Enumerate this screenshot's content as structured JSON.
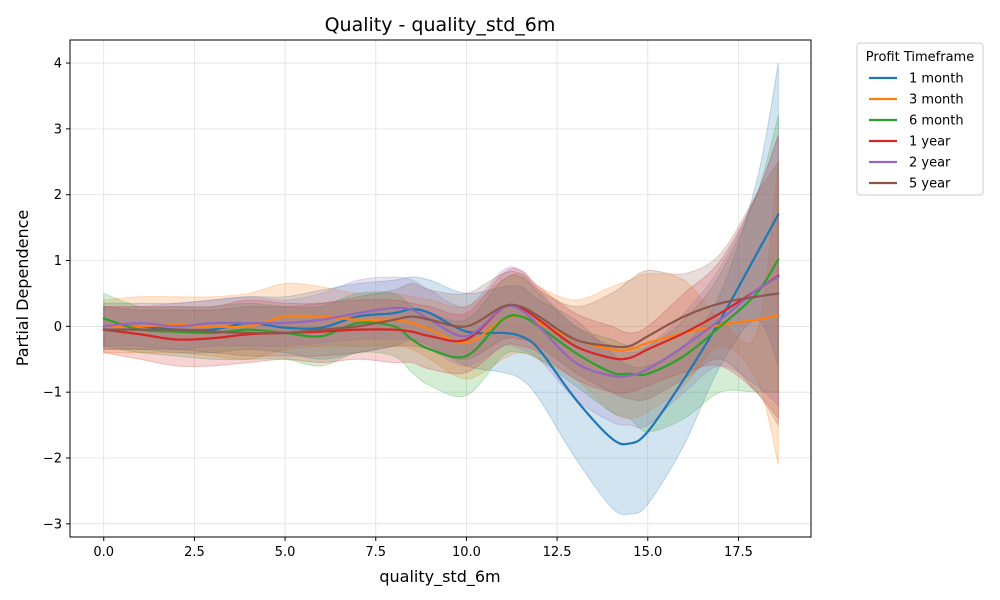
{
  "chart_data": {
    "type": "line",
    "title": "Quality - quality_std_6m",
    "xlabel": "quality_std_6m",
    "ylabel": "Partial Dependence",
    "xlim": [
      -0.93,
      19.5
    ],
    "ylim": [
      -3.2,
      4.35
    ],
    "xticks": [
      0.0,
      2.5,
      5.0,
      7.5,
      10.0,
      12.5,
      15.0,
      17.5
    ],
    "xtick_labels": [
      "0.0",
      "2.5",
      "5.0",
      "7.5",
      "10.0",
      "12.5",
      "15.0",
      "17.5"
    ],
    "yticks": [
      -3,
      -2,
      -1,
      0,
      1,
      2,
      3,
      4
    ],
    "ytick_labels": [
      "−3",
      "−2",
      "−1",
      "0",
      "1",
      "2",
      "3",
      "4"
    ],
    "grid": true,
    "legend": {
      "title": "Profit Timeframe",
      "placement": "outside-top-right"
    },
    "x": [
      0,
      1,
      2,
      3,
      4,
      5,
      6,
      7,
      8,
      8.5,
      9,
      10,
      11,
      11.5,
      12,
      13,
      14,
      14.5,
      15,
      16,
      17,
      18,
      18.6
    ],
    "series": [
      {
        "name": "1 month",
        "color": "#1f77b4",
        "values": [
          0.0,
          0.0,
          -0.05,
          -0.05,
          0.05,
          -0.02,
          -0.02,
          0.15,
          0.2,
          0.26,
          0.2,
          -0.08,
          -0.1,
          -0.15,
          -0.35,
          -1.1,
          -1.7,
          -1.78,
          -1.6,
          -0.8,
          0.1,
          1.1,
          1.7
        ],
        "upper": [
          0.35,
          0.35,
          0.35,
          0.4,
          0.45,
          0.45,
          0.55,
          0.65,
          0.7,
          0.75,
          0.7,
          0.5,
          0.6,
          0.6,
          0.4,
          0.1,
          -0.4,
          -0.6,
          -0.6,
          -0.3,
          0.5,
          2.2,
          4.0
        ],
        "lower": [
          -0.35,
          -0.35,
          -0.4,
          -0.4,
          -0.35,
          -0.4,
          -0.5,
          -0.4,
          -0.3,
          -0.2,
          -0.3,
          -0.6,
          -0.7,
          -0.8,
          -1.1,
          -2.0,
          -2.75,
          -2.85,
          -2.7,
          -1.8,
          -0.6,
          0.1,
          -0.6
        ]
      },
      {
        "name": "3 month",
        "color": "#ff7f0e",
        "values": [
          0.0,
          0.0,
          0.02,
          0.0,
          0.0,
          0.15,
          0.15,
          0.1,
          0.1,
          0.05,
          -0.05,
          -0.25,
          0.1,
          0.15,
          0.05,
          -0.2,
          -0.35,
          -0.35,
          -0.25,
          -0.1,
          0.02,
          0.1,
          0.17
        ],
        "upper": [
          0.4,
          0.45,
          0.45,
          0.45,
          0.5,
          0.65,
          0.6,
          0.5,
          0.5,
          0.45,
          0.4,
          0.3,
          0.7,
          0.8,
          0.6,
          0.4,
          0.6,
          0.7,
          0.8,
          0.7,
          0.1,
          -0.1,
          2.5
        ],
        "lower": [
          -0.4,
          -0.4,
          -0.4,
          -0.45,
          -0.5,
          -0.35,
          -0.3,
          -0.3,
          -0.3,
          -0.35,
          -0.5,
          -0.8,
          -0.5,
          -0.4,
          -0.5,
          -0.8,
          -1.3,
          -1.4,
          -1.3,
          -0.9,
          -0.3,
          -0.8,
          -2.1
        ]
      },
      {
        "name": "6 month",
        "color": "#2ca02c",
        "values": [
          0.12,
          -0.05,
          -0.08,
          -0.1,
          -0.05,
          -0.1,
          -0.15,
          0.05,
          0.0,
          -0.2,
          -0.35,
          -0.45,
          0.1,
          0.15,
          0.0,
          -0.4,
          -0.7,
          -0.72,
          -0.72,
          -0.45,
          0.0,
          0.5,
          1.02
        ],
        "upper": [
          0.5,
          0.3,
          0.3,
          0.3,
          0.35,
          0.3,
          0.3,
          0.5,
          0.5,
          0.3,
          0.2,
          0.1,
          0.7,
          0.75,
          0.5,
          0.0,
          -0.2,
          -0.3,
          -0.3,
          0.1,
          0.8,
          2.0,
          3.2
        ],
        "lower": [
          -0.3,
          -0.4,
          -0.45,
          -0.5,
          -0.5,
          -0.5,
          -0.6,
          -0.4,
          -0.45,
          -0.7,
          -0.9,
          -1.05,
          -0.45,
          -0.4,
          -0.5,
          -0.9,
          -1.3,
          -1.4,
          -1.6,
          -1.4,
          -1.0,
          -1.0,
          -1.0
        ]
      },
      {
        "name": "1 year",
        "color": "#d62728",
        "values": [
          -0.05,
          -0.12,
          -0.2,
          -0.18,
          -0.12,
          -0.1,
          -0.08,
          -0.05,
          -0.05,
          -0.08,
          -0.15,
          -0.2,
          0.28,
          0.28,
          0.1,
          -0.3,
          -0.48,
          -0.48,
          -0.35,
          -0.1,
          0.2,
          0.55,
          0.77
        ],
        "upper": [
          0.3,
          0.3,
          0.3,
          0.3,
          0.4,
          0.35,
          0.35,
          0.4,
          0.4,
          0.35,
          0.3,
          0.2,
          0.8,
          0.85,
          0.6,
          0.2,
          0.0,
          -0.1,
          0.0,
          0.5,
          1.0,
          2.0,
          2.9
        ],
        "lower": [
          -0.4,
          -0.5,
          -0.6,
          -0.6,
          -0.55,
          -0.5,
          -0.55,
          -0.5,
          -0.55,
          -0.55,
          -0.65,
          -0.7,
          -0.3,
          -0.3,
          -0.4,
          -0.8,
          -1.0,
          -1.0,
          -0.9,
          -0.7,
          -0.6,
          -1.0,
          -1.4
        ]
      },
      {
        "name": "2 year",
        "color": "#9467bd",
        "values": [
          0.0,
          0.05,
          0.0,
          0.05,
          0.05,
          0.05,
          0.1,
          0.2,
          0.28,
          0.25,
          0.1,
          -0.15,
          0.28,
          0.25,
          0.0,
          -0.55,
          -0.75,
          -0.75,
          -0.65,
          -0.3,
          0.1,
          0.55,
          0.75
        ],
        "upper": [
          0.3,
          0.3,
          0.35,
          0.4,
          0.45,
          0.4,
          0.5,
          0.7,
          0.75,
          0.7,
          0.55,
          0.3,
          0.85,
          0.85,
          0.55,
          0.0,
          -0.3,
          -0.4,
          -0.3,
          0.2,
          0.9,
          2.0,
          2.9
        ],
        "lower": [
          -0.3,
          -0.3,
          -0.35,
          -0.3,
          -0.3,
          -0.3,
          -0.25,
          -0.2,
          -0.2,
          -0.2,
          -0.35,
          -0.6,
          -0.3,
          -0.35,
          -0.5,
          -1.1,
          -1.45,
          -1.5,
          -1.5,
          -1.0,
          -0.6,
          -0.9,
          -1.2
        ]
      },
      {
        "name": "5 year",
        "color": "#8c564b",
        "values": [
          -0.05,
          -0.05,
          -0.05,
          -0.08,
          -0.1,
          -0.1,
          -0.05,
          0.0,
          0.1,
          0.15,
          0.1,
          0.0,
          0.3,
          0.3,
          0.15,
          -0.2,
          -0.3,
          -0.3,
          -0.15,
          0.15,
          0.35,
          0.45,
          0.5
        ],
        "upper": [
          0.3,
          0.25,
          0.25,
          0.25,
          0.3,
          0.3,
          0.35,
          0.45,
          0.55,
          0.65,
          0.55,
          0.5,
          0.8,
          0.8,
          0.55,
          0.3,
          0.5,
          0.7,
          0.85,
          0.8,
          1.1,
          2.0,
          2.5
        ],
        "lower": [
          -0.35,
          -0.35,
          -0.35,
          -0.4,
          -0.45,
          -0.45,
          -0.45,
          -0.4,
          -0.3,
          -0.3,
          -0.35,
          -0.5,
          -0.2,
          -0.2,
          -0.3,
          -0.7,
          -1.0,
          -1.1,
          -1.1,
          -0.8,
          -0.5,
          -1.0,
          -1.5
        ]
      }
    ]
  }
}
